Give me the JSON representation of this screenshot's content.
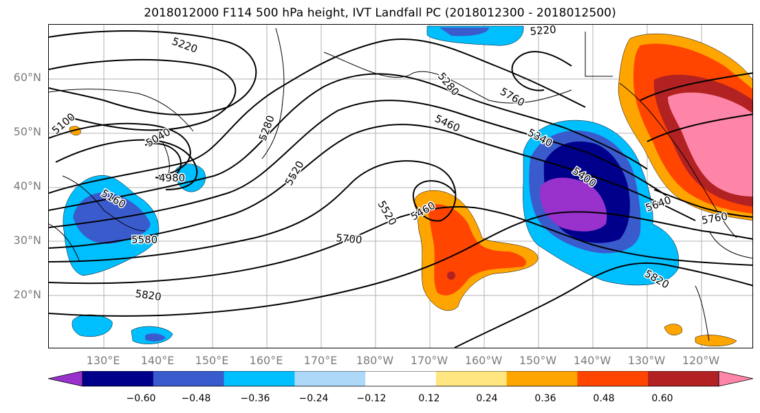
{
  "title": "2018012000 F114 500 hPa height, IVT Landfall PC (2018012300 - 2018012500)",
  "lat_labels": [
    "60°N",
    "50°N",
    "40°N",
    "30°N",
    "20°N"
  ],
  "lon_labels": [
    "130°E",
    "140°E",
    "150°E",
    "160°E",
    "170°E",
    "180°W",
    "170°W",
    "160°W",
    "150°W",
    "140°W",
    "130°W",
    "120°W"
  ],
  "contour_labels": [
    "5220",
    "5220",
    "5280",
    "5760",
    "5460",
    "5340",
    "5400",
    "5100",
    "5040",
    "4980",
    "5280",
    "5160",
    "5520",
    "5520",
    "5460",
    "5580",
    "5700",
    "5640",
    "5760",
    "5820",
    "5820"
  ],
  "colorbar": {
    "tick_labels": [
      "−0.60",
      "−0.48",
      "−0.36",
      "−0.24",
      "−0.12",
      "0.12",
      "0.24",
      "0.36",
      "0.48",
      "0.60"
    ],
    "colors": [
      "#9932cc",
      "#00008b",
      "#3a5bcc",
      "#00bfff",
      "#add8f7",
      "#ffffff",
      "#ffe680",
      "#ffa500",
      "#ff4500",
      "#b22222",
      "#ff85a8"
    ]
  }
}
